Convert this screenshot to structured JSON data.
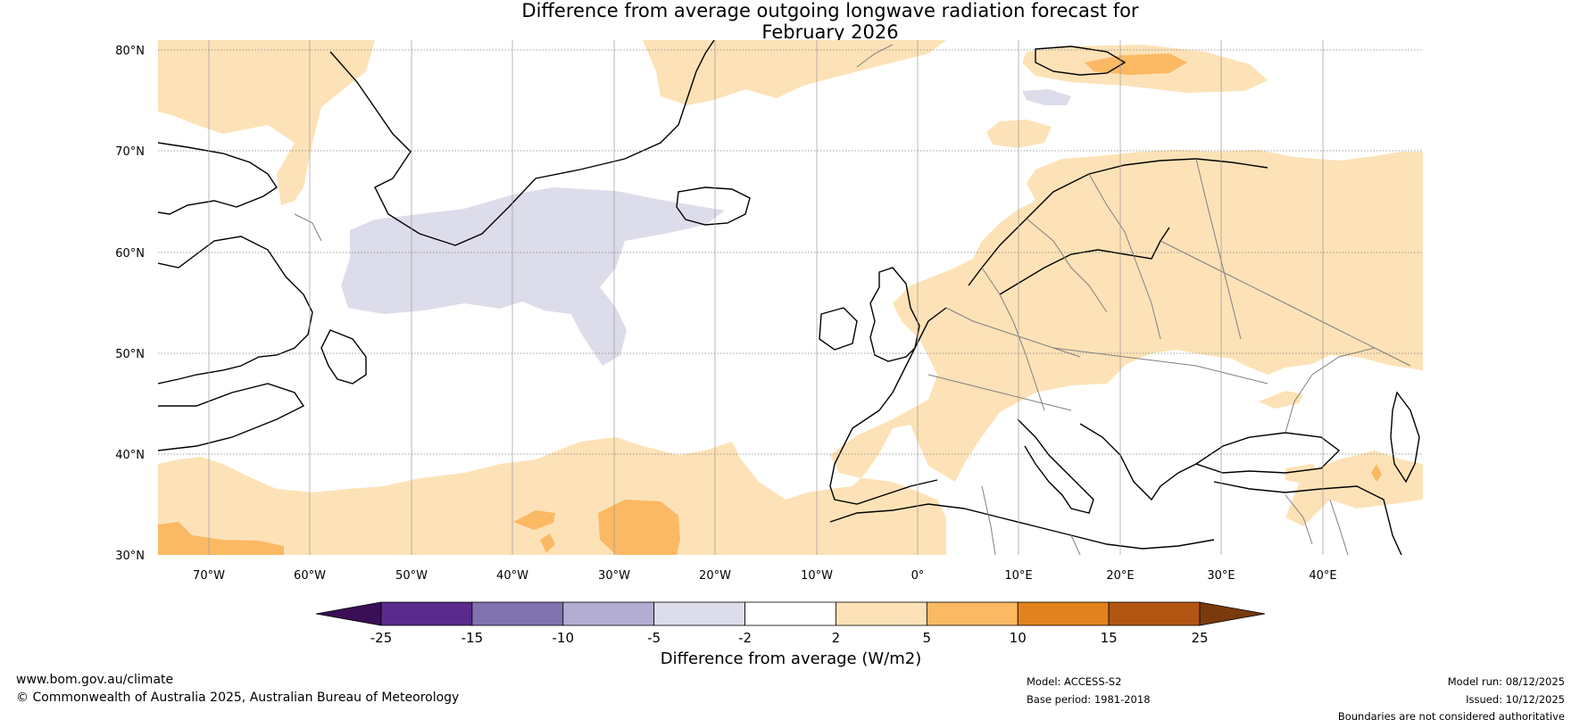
{
  "title": {
    "line1": "Difference from average outgoing longwave radiation forecast for",
    "line2": "February 2026"
  },
  "axes": {
    "lat_labels": [
      "80°N",
      "70°N",
      "60°N",
      "50°N",
      "40°N",
      "30°N"
    ],
    "lon_labels": [
      "70°W",
      "60°W",
      "50°W",
      "40°W",
      "30°W",
      "20°W",
      "10°W",
      "0°",
      "10°E",
      "20°E",
      "30°E",
      "40°E"
    ]
  },
  "colorbar": {
    "ticks": [
      "-25",
      "-15",
      "-10",
      "-5",
      "-2",
      "2",
      "5",
      "10",
      "15",
      "25"
    ],
    "colors": {
      "below_min": "#3b0f56",
      "bins": [
        "#5a2a8c",
        "#8073b0",
        "#b3add3",
        "#dcdceb",
        "#ffffff",
        "#fde2b7",
        "#fbb964",
        "#e2821e",
        "#b35512"
      ],
      "above_max": "#7a3a0c"
    },
    "label": "Difference from average (W/m2)"
  },
  "footer": {
    "website": "www.bom.gov.au/climate",
    "copyright": "© Commonwealth of Australia 2025, Australian Bureau of Meteorology",
    "model": "Model: ACCESS-S2",
    "base_period": "Base period: 1981-2018",
    "model_run": "Model run: 08/12/2025",
    "issued": "Issued: 10/12/2025",
    "disclaimer": "Boundaries are not considered authoritative"
  },
  "colors": {
    "anomaly_pos_2_5": "#fde2b7",
    "anomaly_pos_5_10": "#fbb964",
    "anomaly_neg_2_5": "#dcdceb",
    "coastline": "#000000",
    "borders": "#808080",
    "gridline": "#9a9a9a"
  }
}
